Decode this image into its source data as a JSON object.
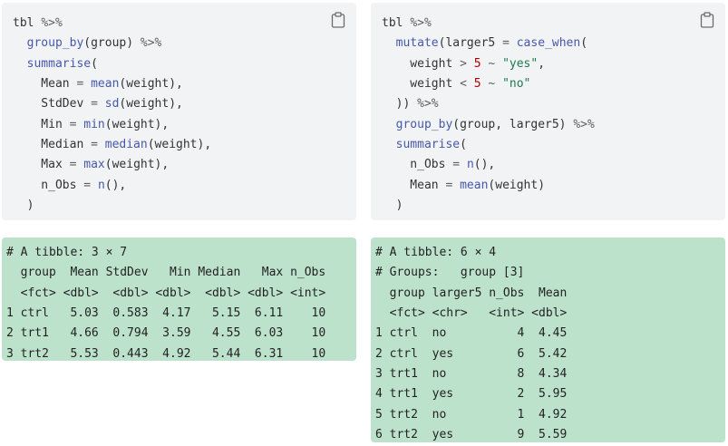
{
  "left_code": {
    "lines": [
      [
        {
          "t": "tbl ",
          "c": ""
        },
        {
          "t": "%>%",
          "c": "op"
        }
      ],
      [
        {
          "t": "  ",
          "c": ""
        },
        {
          "t": "group_by",
          "c": "fn"
        },
        {
          "t": "(group) ",
          "c": ""
        },
        {
          "t": "%>%",
          "c": "op"
        }
      ],
      [
        {
          "t": "  ",
          "c": ""
        },
        {
          "t": "summarise",
          "c": "fn"
        },
        {
          "t": "(",
          "c": ""
        }
      ],
      [
        {
          "t": "    Mean ",
          "c": ""
        },
        {
          "t": "=",
          "c": "op"
        },
        {
          "t": " ",
          "c": ""
        },
        {
          "t": "mean",
          "c": "fn"
        },
        {
          "t": "(weight),",
          "c": ""
        }
      ],
      [
        {
          "t": "    StdDev ",
          "c": ""
        },
        {
          "t": "=",
          "c": "op"
        },
        {
          "t": " ",
          "c": ""
        },
        {
          "t": "sd",
          "c": "fn"
        },
        {
          "t": "(weight),",
          "c": ""
        }
      ],
      [
        {
          "t": "    Min ",
          "c": ""
        },
        {
          "t": "=",
          "c": "op"
        },
        {
          "t": " ",
          "c": ""
        },
        {
          "t": "min",
          "c": "fn"
        },
        {
          "t": "(weight),",
          "c": ""
        }
      ],
      [
        {
          "t": "    Median ",
          "c": ""
        },
        {
          "t": "=",
          "c": "op"
        },
        {
          "t": " ",
          "c": ""
        },
        {
          "t": "median",
          "c": "fn"
        },
        {
          "t": "(weight),",
          "c": ""
        }
      ],
      [
        {
          "t": "    Max ",
          "c": ""
        },
        {
          "t": "=",
          "c": "op"
        },
        {
          "t": " ",
          "c": ""
        },
        {
          "t": "max",
          "c": "fn"
        },
        {
          "t": "(weight),",
          "c": ""
        }
      ],
      [
        {
          "t": "    n_Obs ",
          "c": ""
        },
        {
          "t": "=",
          "c": "op"
        },
        {
          "t": " ",
          "c": ""
        },
        {
          "t": "n",
          "c": "fn"
        },
        {
          "t": "(),",
          "c": ""
        }
      ],
      [
        {
          "t": "  )",
          "c": ""
        }
      ]
    ]
  },
  "right_code": {
    "lines": [
      [
        {
          "t": "tbl ",
          "c": ""
        },
        {
          "t": "%>%",
          "c": "op"
        }
      ],
      [
        {
          "t": "  ",
          "c": ""
        },
        {
          "t": "mutate",
          "c": "fn"
        },
        {
          "t": "(larger5 ",
          "c": ""
        },
        {
          "t": "=",
          "c": "op"
        },
        {
          "t": " ",
          "c": ""
        },
        {
          "t": "case_when",
          "c": "fn"
        },
        {
          "t": "(",
          "c": ""
        }
      ],
      [
        {
          "t": "    weight ",
          "c": ""
        },
        {
          "t": ">",
          "c": "op"
        },
        {
          "t": " ",
          "c": ""
        },
        {
          "t": "5",
          "c": "num"
        },
        {
          "t": " ",
          "c": ""
        },
        {
          "t": "~",
          "c": "op"
        },
        {
          "t": " ",
          "c": ""
        },
        {
          "t": "\"yes\"",
          "c": "str"
        },
        {
          "t": ",",
          "c": ""
        }
      ],
      [
        {
          "t": "    weight ",
          "c": ""
        },
        {
          "t": "<",
          "c": "op"
        },
        {
          "t": " ",
          "c": ""
        },
        {
          "t": "5",
          "c": "num"
        },
        {
          "t": " ",
          "c": ""
        },
        {
          "t": "~",
          "c": "op"
        },
        {
          "t": " ",
          "c": ""
        },
        {
          "t": "\"no\"",
          "c": "str"
        }
      ],
      [
        {
          "t": "  )) ",
          "c": ""
        },
        {
          "t": "%>%",
          "c": "op"
        }
      ],
      [
        {
          "t": "  ",
          "c": ""
        },
        {
          "t": "group_by",
          "c": "fn"
        },
        {
          "t": "(group, larger5) ",
          "c": ""
        },
        {
          "t": "%>%",
          "c": "op"
        }
      ],
      [
        {
          "t": "  ",
          "c": ""
        },
        {
          "t": "summarise",
          "c": "fn"
        },
        {
          "t": "(",
          "c": ""
        }
      ],
      [
        {
          "t": "    n_Obs ",
          "c": ""
        },
        {
          "t": "=",
          "c": "op"
        },
        {
          "t": " ",
          "c": ""
        },
        {
          "t": "n",
          "c": "fn"
        },
        {
          "t": "(),",
          "c": ""
        }
      ],
      [
        {
          "t": "    Mean ",
          "c": ""
        },
        {
          "t": "=",
          "c": "op"
        },
        {
          "t": " ",
          "c": ""
        },
        {
          "t": "mean",
          "c": "fn"
        },
        {
          "t": "(weight)",
          "c": ""
        }
      ],
      [
        {
          "t": "  )",
          "c": ""
        }
      ]
    ]
  },
  "left_output": {
    "lines": [
      "# A tibble: 3 × 7",
      "  group  Mean StdDev   Min Median   Max n_Obs",
      "  <fct> <dbl>  <dbl> <dbl>  <dbl> <dbl> <int>",
      "1 ctrl   5.03  0.583  4.17   5.15  6.11    10",
      "2 trt1   4.66  0.794  3.59   4.55  6.03    10",
      "3 trt2   5.53  0.443  4.92   5.44  6.31    10"
    ]
  },
  "right_output": {
    "lines": [
      "# A tibble: 6 × 4",
      "# Groups:   group [3]",
      "  group larger5 n_Obs  Mean",
      "  <fct> <chr>   <int> <dbl>",
      "1 ctrl  no          4  4.45",
      "2 ctrl  yes         6  5.42",
      "3 trt1  no          8  4.34",
      "4 trt1  yes         2  5.95",
      "5 trt2  no          1  4.92",
      "6 trt2  yes         9  5.59"
    ]
  },
  "icons": {
    "copy": "clipboard-icon"
  },
  "colors": {
    "code_bg": "#f1f3f5",
    "output_bg": "#bde2cc",
    "function": "#4758ab",
    "number": "#ad0000",
    "string": "#20794d",
    "operator": "#5e5e5e"
  }
}
